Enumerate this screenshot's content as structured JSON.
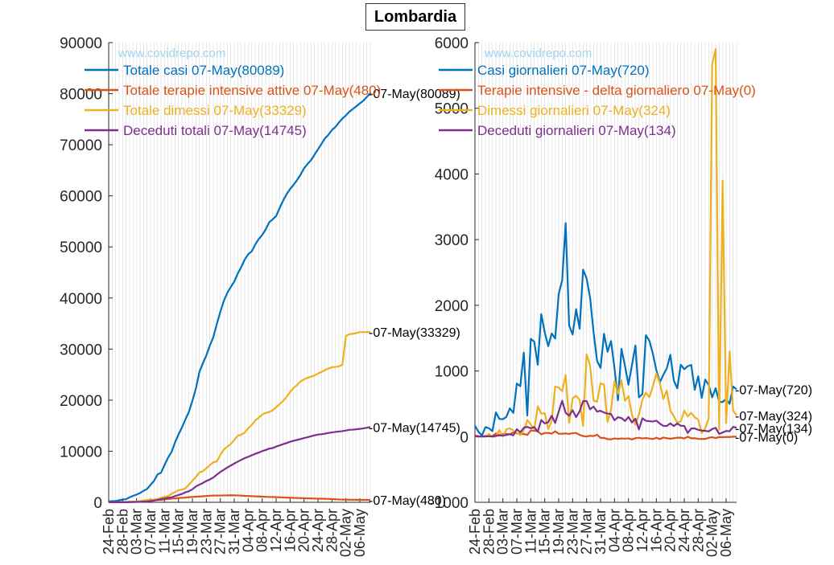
{
  "title": "Lombardia",
  "watermark": "www.covidrepo.com",
  "colors": {
    "blue": "#0072BD",
    "orange": "#D95319",
    "yellow": "#EDB120",
    "purple": "#7E2F8E",
    "grid": "#d9d9d9",
    "axis": "#262626",
    "watermark": "#9fd4f3"
  },
  "x_tick_labels": [
    "24-Feb",
    "28-Feb",
    "03-Mar",
    "07-Mar",
    "11-Mar",
    "15-Mar",
    "19-Mar",
    "23-Mar",
    "27-Mar",
    "31-Mar",
    "04-Apr",
    "08-Apr",
    "12-Apr",
    "16-Apr",
    "20-Apr",
    "24-Apr",
    "28-Apr",
    "02-May",
    "06-May"
  ],
  "chart_data": [
    {
      "type": "line",
      "xlim": [
        "24-Feb",
        "07-May"
      ],
      "ylim": [
        0,
        90000
      ],
      "yticks": [
        0,
        10000,
        20000,
        30000,
        40000,
        50000,
        60000,
        70000,
        80000,
        90000
      ],
      "x_start_label": "24-Feb",
      "series": [
        {
          "name": "Totale casi 07-May(80089)",
          "color": "#0072BD",
          "end_label": "-07-May(80089)",
          "values": [
            166,
            240,
            258,
            403,
            531,
            615,
            984,
            1254,
            1520,
            1820,
            2251,
            2612,
            3420,
            4189,
            5469,
            5791,
            7280,
            8725,
            9820,
            11685,
            13272,
            14649,
            16220,
            17713,
            19884,
            22264,
            25515,
            27206,
            28761,
            30703,
            32346,
            34889,
            37298,
            39415,
            41007,
            42161,
            43208,
            44773,
            46065,
            47520,
            48565,
            49118,
            50455,
            51534,
            52325,
            53414,
            54802,
            55400,
            56048,
            57592,
            59052,
            60314,
            61326,
            62153,
            63094,
            64135,
            65381,
            66236,
            66971,
            68066,
            69092,
            70165,
            71256,
            71969,
            72889,
            73479,
            74348,
            75134,
            75732,
            76469,
            77002,
            77528,
            78105,
            78605,
            79369,
            80089
          ]
        },
        {
          "name": "Totale terapie intensive attive 07-May(480)",
          "color": "#D95319",
          "end_label": "-07-May(480)",
          "values": [
            19,
            25,
            25,
            35,
            47,
            56,
            105,
            127,
            167,
            209,
            244,
            309,
            359,
            399,
            440,
            466,
            560,
            650,
            732,
            767,
            823,
            879,
            924,
            1006,
            1050,
            1093,
            1142,
            1183,
            1236,
            1292,
            1319,
            1328,
            1330,
            1343,
            1351,
            1381,
            1362,
            1343,
            1305,
            1263,
            1236,
            1202,
            1174,
            1143,
            1117,
            1074,
            1051,
            1034,
            1006,
            985,
            956,
            920,
            903,
            866,
            852,
            828,
            796,
            772,
            756,
            741,
            713,
            712,
            686,
            662,
            628,
            592,
            557,
            539,
            530,
            508,
            502,
            493,
            488,
            482,
            481,
            480
          ]
        },
        {
          "name": "Totale dimessi 07-May(33329)",
          "color": "#EDB120",
          "end_label": "-07-May(33329)",
          "values": [
            0,
            0,
            0,
            0,
            40,
            40,
            40,
            139,
            139,
            250,
            376,
            469,
            524,
            550,
            646,
            900,
            1085,
            1198,
            1660,
            2011,
            2368,
            2485,
            2725,
            3488,
            4235,
            4927,
            5865,
            6075,
            6657,
            7281,
            7839,
            8001,
            9255,
            10336,
            10885,
            11415,
            12229,
            13020,
            13242,
            13650,
            14498,
            15147,
            16004,
            16548,
            17166,
            17500,
            17680,
            18018,
            18580,
            19250,
            19851,
            20619,
            21579,
            22394,
            22966,
            23669,
            24068,
            24379,
            24591,
            24823,
            25219,
            25528,
            25891,
            26186,
            26445,
            26497,
            26622,
            26900,
            32574,
            32900,
            33005,
            33122,
            33329,
            33329,
            33329,
            33329
          ]
        },
        {
          "name": "Deceduti totali 07-May(14745)",
          "color": "#7E2F8E",
          "end_label": "-07-May(14745)",
          "values": [
            6,
            9,
            14,
            17,
            23,
            24,
            38,
            55,
            73,
            98,
            135,
            154,
            267,
            333,
            468,
            617,
            744,
            890,
            966,
            1218,
            1420,
            1640,
            1959,
            2168,
            2549,
            3095,
            3456,
            3776,
            4178,
            4474,
            4861,
            5402,
            5944,
            6360,
            6818,
            7199,
            7593,
            7960,
            8311,
            8656,
            8905,
            9202,
            9484,
            9722,
            10022,
            10238,
            10511,
            10621,
            10901,
            11142,
            11377,
            11608,
            11851,
            12050,
            12214,
            12376,
            12579,
            12740,
            12940,
            13106,
            13269,
            13325,
            13449,
            13575,
            13679,
            13772,
            13860,
            13939,
            14055,
            14189,
            14231,
            14294,
            14380,
            14462,
            14611,
            14745
          ]
        }
      ]
    },
    {
      "type": "line",
      "xlim": [
        "24-Feb",
        "07-May"
      ],
      "ylim": [
        -1000,
        6000
      ],
      "yticks": [
        -1000,
        0,
        1000,
        2000,
        3000,
        4000,
        5000,
        6000
      ],
      "series": [
        {
          "name": "Casi giornalieri 07-May(720)",
          "color": "#0072BD",
          "end_label": "-07-May(720)",
          "values": [
            166,
            74,
            18,
            145,
            128,
            84,
            369,
            270,
            266,
            300,
            431,
            361,
            808,
            769,
            1280,
            322,
            1489,
            1445,
            1095,
            1865,
            1587,
            1377,
            1571,
            1493,
            2171,
            2380,
            3251,
            1691,
            1555,
            1942,
            1643,
            2543,
            2409,
            2117,
            1592,
            1154,
            1047,
            1565,
            1292,
            1455,
            1045,
            553,
            1337,
            1079,
            791,
            1089,
            1388,
            598,
            648,
            1544,
            1460,
            1262,
            1012,
            827,
            941,
            1041,
            1246,
            855,
            735,
            1095,
            1026,
            1073,
            1091,
            713,
            920,
            590,
            869,
            786,
            598,
            737,
            533,
            526,
            577,
            500,
            764,
            720
          ]
        },
        {
          "name": "Terapie intensive - delta giornaliero 07-May(0)",
          "color": "#D95319",
          "end_label": "-07-May(0)",
          "values": [
            19,
            6,
            0,
            10,
            12,
            9,
            49,
            22,
            40,
            42,
            35,
            65,
            50,
            40,
            41,
            26,
            94,
            90,
            82,
            35,
            56,
            56,
            45,
            82,
            44,
            43,
            49,
            41,
            53,
            56,
            27,
            9,
            2,
            13,
            8,
            30,
            -19,
            -19,
            -38,
            -42,
            -27,
            -34,
            -28,
            -31,
            -26,
            -43,
            -23,
            -17,
            -28,
            -21,
            -29,
            -36,
            -17,
            -37,
            -14,
            -24,
            -32,
            -24,
            -16,
            -15,
            -28,
            -1,
            -26,
            -24,
            -34,
            -36,
            -35,
            -18,
            -9,
            -22,
            -6,
            -9,
            -5,
            -6,
            -1,
            0
          ]
        },
        {
          "name": "Dimessi giornalieri 07-May(324)",
          "color": "#EDB120",
          "end_label": "-07-May(324)",
          "values": [
            0,
            0,
            0,
            0,
            40,
            0,
            0,
            99,
            0,
            111,
            126,
            93,
            55,
            26,
            96,
            254,
            185,
            113,
            462,
            351,
            357,
            117,
            240,
            763,
            747,
            692,
            938,
            210,
            582,
            624,
            558,
            162,
            1254,
            1081,
            549,
            530,
            814,
            791,
            222,
            408,
            848,
            649,
            857,
            544,
            618,
            334,
            180,
            338,
            562,
            670,
            601,
            768,
            960,
            815,
            572,
            703,
            399,
            311,
            212,
            232,
            396,
            309,
            363,
            295,
            259,
            52,
            125,
            278,
            5674,
            5900,
            105,
            3900,
            207,
            1300,
            400,
            324
          ]
        },
        {
          "name": "Deceduti giornalieri 07-May(134)",
          "color": "#7E2F8E",
          "end_label": "-07-May(134)",
          "values": [
            6,
            3,
            5,
            3,
            6,
            1,
            14,
            17,
            18,
            25,
            37,
            19,
            113,
            66,
            135,
            149,
            127,
            146,
            76,
            252,
            202,
            220,
            319,
            209,
            381,
            546,
            361,
            320,
            402,
            296,
            387,
            541,
            542,
            416,
            458,
            381,
            394,
            367,
            351,
            345,
            249,
            297,
            282,
            238,
            300,
            216,
            273,
            110,
            280,
            241,
            235,
            231,
            243,
            199,
            164,
            162,
            203,
            161,
            200,
            166,
            163,
            56,
            124,
            126,
            104,
            93,
            88,
            79,
            116,
            134,
            42,
            63,
            86,
            82,
            149,
            134
          ]
        }
      ]
    }
  ]
}
